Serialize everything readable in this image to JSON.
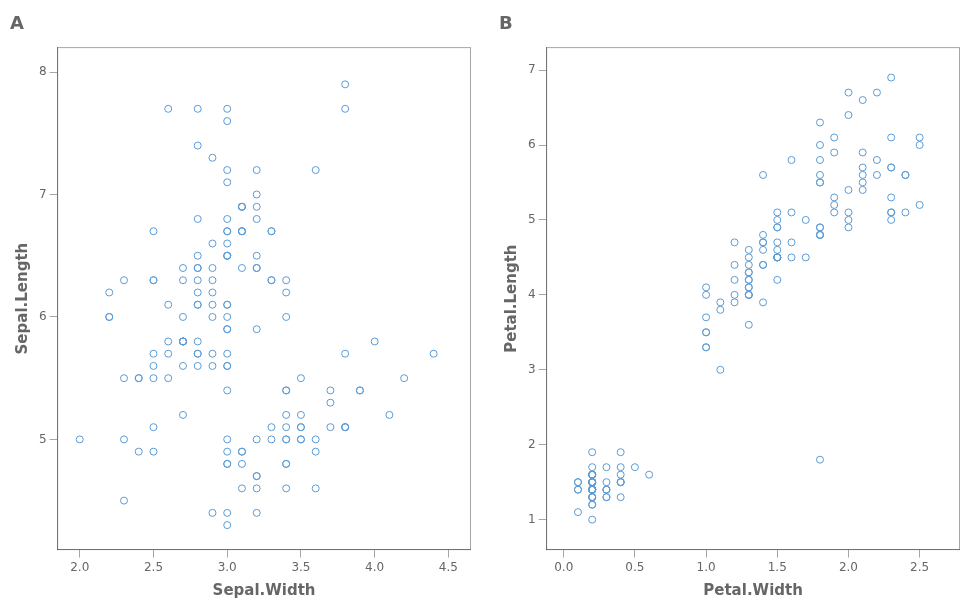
{
  "chart_data": [
    {
      "type": "scatter",
      "title": "A",
      "xlabel": "Sepal.Width",
      "ylabel": "Sepal.Length",
      "x": [
        3.5,
        3.0,
        3.2,
        3.1,
        3.6,
        3.9,
        3.4,
        3.4,
        2.9,
        3.1,
        3.7,
        3.4,
        3.0,
        3.0,
        4.0,
        4.4,
        3.9,
        3.5,
        3.8,
        3.8,
        3.4,
        3.7,
        3.6,
        3.3,
        3.4,
        3.0,
        3.4,
        3.5,
        3.4,
        3.2,
        3.1,
        3.4,
        4.1,
        4.2,
        3.1,
        3.2,
        3.5,
        3.6,
        3.0,
        3.4,
        3.5,
        2.3,
        3.2,
        3.5,
        3.8,
        3.0,
        3.8,
        3.2,
        3.7,
        3.3,
        3.2,
        3.2,
        3.1,
        2.3,
        2.8,
        2.8,
        3.3,
        2.4,
        2.9,
        2.7,
        2.0,
        3.0,
        2.2,
        2.9,
        2.9,
        3.1,
        3.0,
        2.7,
        2.2,
        2.5,
        3.2,
        2.8,
        2.5,
        2.8,
        2.9,
        3.0,
        2.8,
        3.0,
        2.9,
        2.6,
        2.4,
        2.4,
        2.7,
        2.7,
        3.0,
        3.4,
        3.1,
        2.3,
        3.0,
        2.5,
        2.6,
        3.0,
        2.6,
        2.3,
        2.7,
        3.0,
        2.9,
        2.9,
        2.5,
        2.8,
        3.3,
        2.7,
        3.0,
        2.9,
        3.0,
        3.0,
        2.5,
        2.9,
        2.5,
        3.6,
        3.2,
        2.7,
        3.0,
        2.5,
        2.8,
        3.2,
        3.0,
        3.8,
        2.6,
        2.2,
        3.2,
        2.8,
        2.8,
        2.7,
        3.3,
        3.2,
        2.8,
        3.0,
        2.8,
        3.0,
        2.8,
        3.8,
        2.8,
        2.8,
        2.6,
        3.0,
        3.4,
        3.1,
        3.0,
        3.1,
        3.1,
        3.1,
        2.7,
        3.2,
        3.3,
        3.0,
        2.5,
        3.0,
        3.4,
        3.0
      ],
      "values": [
        5.1,
        4.9,
        4.7,
        4.6,
        5.0,
        5.4,
        4.6,
        5.0,
        4.4,
        4.9,
        5.4,
        4.8,
        4.8,
        4.3,
        5.8,
        5.7,
        5.4,
        5.1,
        5.7,
        5.1,
        5.4,
        5.1,
        4.6,
        5.1,
        4.8,
        5.0,
        5.0,
        5.2,
        5.2,
        4.7,
        4.8,
        5.4,
        5.2,
        5.5,
        4.9,
        5.0,
        5.5,
        4.9,
        4.4,
        5.1,
        5.0,
        4.5,
        4.4,
        5.0,
        5.1,
        4.8,
        5.1,
        4.6,
        5.3,
        5.0,
        7.0,
        6.4,
        6.9,
        5.5,
        6.5,
        5.7,
        6.3,
        4.9,
        6.6,
        5.2,
        5.0,
        5.9,
        6.0,
        6.1,
        5.6,
        6.7,
        5.6,
        5.8,
        6.2,
        5.6,
        5.9,
        6.1,
        6.3,
        6.1,
        6.4,
        6.6,
        6.8,
        6.7,
        6.0,
        5.7,
        5.5,
        5.5,
        5.8,
        6.0,
        5.4,
        6.0,
        6.7,
        6.3,
        5.6,
        5.5,
        5.5,
        6.1,
        5.8,
        5.0,
        5.6,
        5.7,
        5.7,
        6.2,
        5.1,
        5.7,
        6.3,
        5.8,
        7.1,
        6.3,
        6.5,
        7.6,
        4.9,
        7.3,
        6.7,
        7.2,
        6.5,
        6.4,
        6.8,
        5.7,
        5.8,
        6.4,
        6.5,
        7.7,
        7.7,
        6.0,
        6.9,
        5.6,
        7.7,
        6.3,
        6.7,
        7.2,
        6.2,
        6.1,
        6.4,
        7.2,
        7.4,
        7.9,
        6.4,
        6.3,
        6.1,
        7.7,
        6.3,
        6.4,
        6.0,
        6.9,
        6.7,
        6.9,
        5.8,
        6.8,
        6.7,
        6.7,
        6.3,
        6.5,
        6.2,
        5.9
      ],
      "color": "#5B9BD5",
      "marker": "circle",
      "grid": false,
      "xlim": [
        1.85,
        4.65
      ],
      "xticks": [
        {
          "value": 2.0,
          "label": "2.0"
        },
        2.5,
        {
          "value": 3.0,
          "label": "3.0"
        },
        3.5,
        {
          "value": 4.0,
          "label": "4.0"
        },
        4.5
      ],
      "ylim": [
        4.1,
        8.2
      ],
      "yticks": [
        5,
        6,
        7,
        8
      ]
    },
    {
      "type": "scatter",
      "title": "B",
      "xlabel": "Petal.Width",
      "ylabel": "Petal.Length",
      "x": [
        0.2,
        0.2,
        0.2,
        0.2,
        0.2,
        0.4,
        0.3,
        0.2,
        0.2,
        0.1,
        0.2,
        0.2,
        0.1,
        0.1,
        0.2,
        0.4,
        0.4,
        0.3,
        0.3,
        0.3,
        0.2,
        0.4,
        0.2,
        0.5,
        0.2,
        0.2,
        0.4,
        0.2,
        0.2,
        0.2,
        0.2,
        0.4,
        0.1,
        0.2,
        0.2,
        0.2,
        0.2,
        0.1,
        0.2,
        0.2,
        0.3,
        0.3,
        0.2,
        0.6,
        0.4,
        0.3,
        0.2,
        0.2,
        0.2,
        0.2,
        1.4,
        1.5,
        1.5,
        1.3,
        1.5,
        1.3,
        1.6,
        1.0,
        1.3,
        1.4,
        1.0,
        1.5,
        1.0,
        1.4,
        1.3,
        1.4,
        1.5,
        1.0,
        1.5,
        1.1,
        1.8,
        1.3,
        1.5,
        1.2,
        1.3,
        1.4,
        1.4,
        1.7,
        1.5,
        1.0,
        1.1,
        1.0,
        1.2,
        1.6,
        1.5,
        1.6,
        1.5,
        1.3,
        1.3,
        1.3,
        1.2,
        1.4,
        1.2,
        1.0,
        1.3,
        1.2,
        1.3,
        1.3,
        1.1,
        1.3,
        2.5,
        1.9,
        2.1,
        1.8,
        2.2,
        2.1,
        1.7,
        1.8,
        1.8,
        2.5,
        2.0,
        1.9,
        2.1,
        2.0,
        2.4,
        2.3,
        1.8,
        2.2,
        2.3,
        1.5,
        2.3,
        2.0,
        2.0,
        1.8,
        2.1,
        1.8,
        1.8,
        1.8,
        2.1,
        1.6,
        1.9,
        2.0,
        2.2,
        1.5,
        1.4,
        2.3,
        2.4,
        1.8,
        1.8,
        2.1,
        2.4,
        2.3,
        1.9,
        2.3,
        2.5,
        2.3,
        1.9,
        2.0,
        2.3,
        1.8
      ],
      "values": [
        1.4,
        1.4,
        1.3,
        1.5,
        1.4,
        1.7,
        1.4,
        1.5,
        1.4,
        1.5,
        1.5,
        1.6,
        1.4,
        1.1,
        1.2,
        1.5,
        1.3,
        1.4,
        1.7,
        1.5,
        1.7,
        1.5,
        1.0,
        1.7,
        1.9,
        1.6,
        1.6,
        1.5,
        1.4,
        1.6,
        1.6,
        1.5,
        1.5,
        1.4,
        1.5,
        1.2,
        1.3,
        1.4,
        1.3,
        1.5,
        1.3,
        1.3,
        1.3,
        1.6,
        1.9,
        1.4,
        1.6,
        1.4,
        1.5,
        1.4,
        4.7,
        4.5,
        4.9,
        4.0,
        4.6,
        4.5,
        4.7,
        3.3,
        4.6,
        3.9,
        3.5,
        4.2,
        4.0,
        4.7,
        3.6,
        4.4,
        4.5,
        4.1,
        4.5,
        3.9,
        4.8,
        4.0,
        4.9,
        4.7,
        4.3,
        4.4,
        4.8,
        5.0,
        4.5,
        3.5,
        3.8,
        3.7,
        3.9,
        5.1,
        4.5,
        4.5,
        4.7,
        4.4,
        4.1,
        4.0,
        4.4,
        4.6,
        4.0,
        3.3,
        4.2,
        4.2,
        4.2,
        4.3,
        3.0,
        4.1,
        6.0,
        5.1,
        5.9,
        5.6,
        5.8,
        6.6,
        4.5,
        6.3,
        5.8,
        6.1,
        5.1,
        5.3,
        5.5,
        5.0,
        5.1,
        5.3,
        5.5,
        6.7,
        6.9,
        5.0,
        5.7,
        4.9,
        6.7,
        4.9,
        5.7,
        6.0,
        4.8,
        4.9,
        5.6,
        5.8,
        6.1,
        6.4,
        5.6,
        5.1,
        5.6,
        6.1,
        5.6,
        5.5,
        4.8,
        5.4,
        5.6,
        5.1,
        5.9,
        5.7,
        5.2,
        5.0,
        5.2,
        5.4,
        5.1,
        1.8
      ],
      "color": "#5B9BD5",
      "marker": "circle",
      "grid": false,
      "xlim": [
        -0.12,
        2.78
      ],
      "xticks": [
        {
          "value": 0.0,
          "label": "0.0"
        },
        0.5,
        {
          "value": 1.0,
          "label": "1.0"
        },
        1.5,
        {
          "value": 2.0,
          "label": "2.0"
        },
        2.5
      ],
      "ylim": [
        0.6,
        7.3
      ],
      "yticks": [
        1,
        2,
        3,
        4,
        5,
        6,
        7
      ]
    }
  ]
}
